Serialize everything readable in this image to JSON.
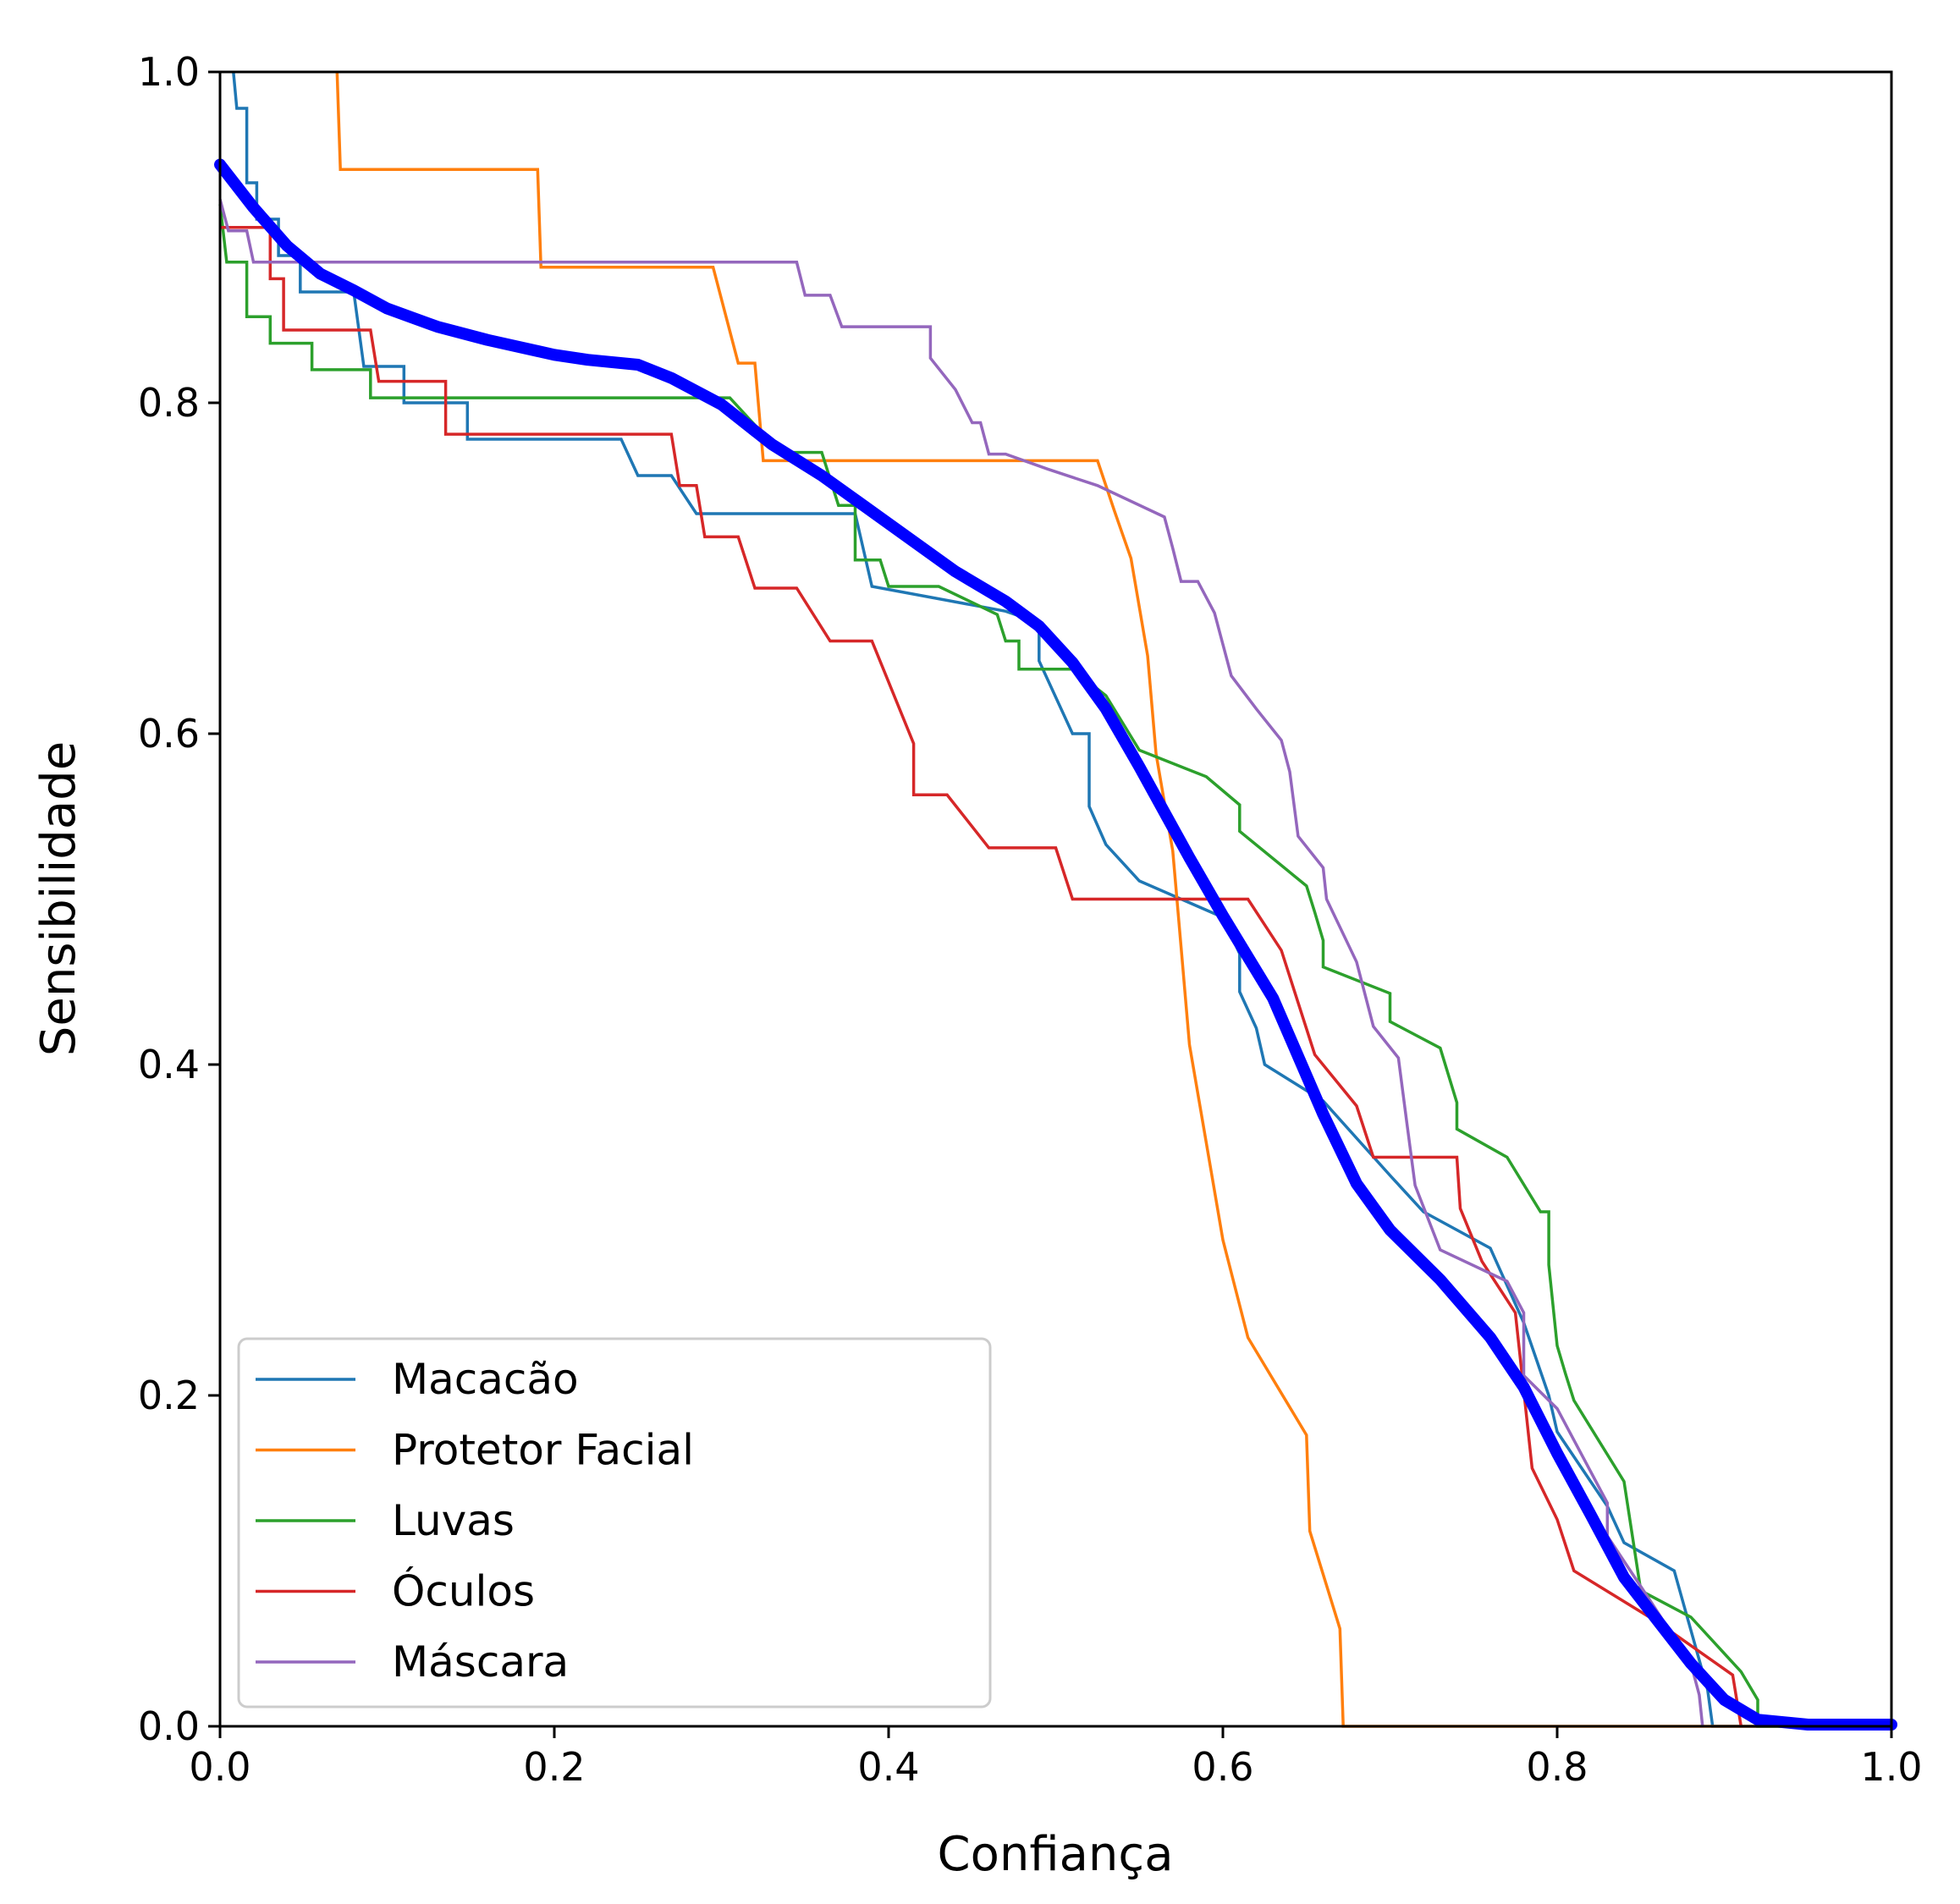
{
  "chart_data": {
    "type": "line",
    "xlabel": "Confiança",
    "ylabel": "Sensibilidade",
    "xlim": [
      0,
      1
    ],
    "ylim": [
      0,
      1
    ],
    "xticks": [
      "0.0",
      "0.2",
      "0.4",
      "0.6",
      "0.8",
      "1.0"
    ],
    "yticks": [
      "0.0",
      "0.2",
      "0.4",
      "0.6",
      "0.8",
      "1.0"
    ],
    "grid": false,
    "legend_position": "bottom-left",
    "series": [
      {
        "name": "Macacão",
        "color": "#1f77b4",
        "points": [
          [
            0.008,
            1.0
          ],
          [
            0.01,
            0.978
          ],
          [
            0.016,
            0.978
          ],
          [
            0.016,
            0.933
          ],
          [
            0.022,
            0.933
          ],
          [
            0.022,
            0.911
          ],
          [
            0.035,
            0.911
          ],
          [
            0.035,
            0.889
          ],
          [
            0.048,
            0.889
          ],
          [
            0.048,
            0.867
          ],
          [
            0.08,
            0.867
          ],
          [
            0.086,
            0.822
          ],
          [
            0.11,
            0.822
          ],
          [
            0.11,
            0.8
          ],
          [
            0.148,
            0.8
          ],
          [
            0.148,
            0.778
          ],
          [
            0.24,
            0.778
          ],
          [
            0.25,
            0.756
          ],
          [
            0.27,
            0.756
          ],
          [
            0.285,
            0.733
          ],
          [
            0.38,
            0.733
          ],
          [
            0.39,
            0.689
          ],
          [
            0.47,
            0.674
          ],
          [
            0.49,
            0.667
          ],
          [
            0.49,
            0.644
          ],
          [
            0.51,
            0.6
          ],
          [
            0.52,
            0.6
          ],
          [
            0.52,
            0.556
          ],
          [
            0.53,
            0.533
          ],
          [
            0.55,
            0.511
          ],
          [
            0.6,
            0.489
          ],
          [
            0.61,
            0.467
          ],
          [
            0.61,
            0.444
          ],
          [
            0.62,
            0.422
          ],
          [
            0.625,
            0.4
          ],
          [
            0.66,
            0.378
          ],
          [
            0.7,
            0.333
          ],
          [
            0.72,
            0.311
          ],
          [
            0.76,
            0.289
          ],
          [
            0.78,
            0.244
          ],
          [
            0.795,
            0.2
          ],
          [
            0.8,
            0.178
          ],
          [
            0.83,
            0.133
          ],
          [
            0.84,
            0.111
          ],
          [
            0.87,
            0.094
          ],
          [
            0.89,
            0.022
          ],
          [
            0.893,
            0.0
          ],
          [
            1.0,
            0.0
          ]
        ]
      },
      {
        "name": "Protetor Facial",
        "color": "#ff7f0e",
        "points": [
          [
            0.07,
            1.0
          ],
          [
            0.072,
            0.941
          ],
          [
            0.19,
            0.941
          ],
          [
            0.192,
            0.882
          ],
          [
            0.295,
            0.882
          ],
          [
            0.31,
            0.824
          ],
          [
            0.32,
            0.824
          ],
          [
            0.325,
            0.765
          ],
          [
            0.525,
            0.765
          ],
          [
            0.535,
            0.735
          ],
          [
            0.545,
            0.706
          ],
          [
            0.555,
            0.647
          ],
          [
            0.56,
            0.588
          ],
          [
            0.57,
            0.529
          ],
          [
            0.575,
            0.471
          ],
          [
            0.58,
            0.412
          ],
          [
            0.59,
            0.353
          ],
          [
            0.6,
            0.294
          ],
          [
            0.615,
            0.235
          ],
          [
            0.65,
            0.176
          ],
          [
            0.652,
            0.118
          ],
          [
            0.67,
            0.059
          ],
          [
            0.672,
            0.0
          ],
          [
            1.0,
            0.0
          ]
        ]
      },
      {
        "name": "Luvas",
        "color": "#2ca02c",
        "points": [
          [
            0.0,
            0.92
          ],
          [
            0.004,
            0.885
          ],
          [
            0.016,
            0.885
          ],
          [
            0.016,
            0.852
          ],
          [
            0.03,
            0.852
          ],
          [
            0.03,
            0.836
          ],
          [
            0.055,
            0.836
          ],
          [
            0.055,
            0.82
          ],
          [
            0.09,
            0.82
          ],
          [
            0.09,
            0.803
          ],
          [
            0.305,
            0.803
          ],
          [
            0.335,
            0.77
          ],
          [
            0.36,
            0.77
          ],
          [
            0.37,
            0.738
          ],
          [
            0.38,
            0.738
          ],
          [
            0.38,
            0.705
          ],
          [
            0.395,
            0.705
          ],
          [
            0.4,
            0.689
          ],
          [
            0.43,
            0.689
          ],
          [
            0.465,
            0.672
          ],
          [
            0.47,
            0.656
          ],
          [
            0.478,
            0.656
          ],
          [
            0.478,
            0.639
          ],
          [
            0.51,
            0.639
          ],
          [
            0.53,
            0.623
          ],
          [
            0.55,
            0.59
          ],
          [
            0.59,
            0.574
          ],
          [
            0.61,
            0.557
          ],
          [
            0.61,
            0.541
          ],
          [
            0.65,
            0.508
          ],
          [
            0.655,
            0.492
          ],
          [
            0.66,
            0.475
          ],
          [
            0.66,
            0.459
          ],
          [
            0.7,
            0.443
          ],
          [
            0.7,
            0.426
          ],
          [
            0.73,
            0.41
          ],
          [
            0.74,
            0.377
          ],
          [
            0.74,
            0.361
          ],
          [
            0.77,
            0.344
          ],
          [
            0.79,
            0.311
          ],
          [
            0.795,
            0.311
          ],
          [
            0.795,
            0.279
          ],
          [
            0.8,
            0.23
          ],
          [
            0.805,
            0.213
          ],
          [
            0.81,
            0.197
          ],
          [
            0.84,
            0.148
          ],
          [
            0.85,
            0.082
          ],
          [
            0.88,
            0.066
          ],
          [
            0.91,
            0.033
          ],
          [
            0.92,
            0.016
          ],
          [
            0.92,
            0.0
          ],
          [
            1.0,
            0.0
          ]
        ]
      },
      {
        "name": "Óculos",
        "color": "#d62728",
        "points": [
          [
            0.0,
            0.906
          ],
          [
            0.03,
            0.906
          ],
          [
            0.03,
            0.875
          ],
          [
            0.038,
            0.875
          ],
          [
            0.038,
            0.844
          ],
          [
            0.09,
            0.844
          ],
          [
            0.095,
            0.813
          ],
          [
            0.135,
            0.813
          ],
          [
            0.135,
            0.781
          ],
          [
            0.27,
            0.781
          ],
          [
            0.275,
            0.75
          ],
          [
            0.285,
            0.75
          ],
          [
            0.29,
            0.719
          ],
          [
            0.31,
            0.719
          ],
          [
            0.32,
            0.688
          ],
          [
            0.345,
            0.688
          ],
          [
            0.365,
            0.656
          ],
          [
            0.39,
            0.656
          ],
          [
            0.415,
            0.594
          ],
          [
            0.415,
            0.563
          ],
          [
            0.435,
            0.563
          ],
          [
            0.46,
            0.531
          ],
          [
            0.5,
            0.531
          ],
          [
            0.51,
            0.5
          ],
          [
            0.615,
            0.5
          ],
          [
            0.635,
            0.469
          ],
          [
            0.655,
            0.406
          ],
          [
            0.68,
            0.375
          ],
          [
            0.69,
            0.344
          ],
          [
            0.74,
            0.344
          ],
          [
            0.742,
            0.313
          ],
          [
            0.755,
            0.281
          ],
          [
            0.775,
            0.25
          ],
          [
            0.785,
            0.156
          ],
          [
            0.8,
            0.125
          ],
          [
            0.81,
            0.094
          ],
          [
            0.86,
            0.063
          ],
          [
            0.905,
            0.031
          ],
          [
            0.91,
            0.0
          ]
        ]
      },
      {
        "name": "Máscara",
        "color": "#9467bd",
        "points": [
          [
            0.0,
            0.923
          ],
          [
            0.005,
            0.904
          ],
          [
            0.016,
            0.904
          ],
          [
            0.02,
            0.885
          ],
          [
            0.345,
            0.885
          ],
          [
            0.35,
            0.865
          ],
          [
            0.365,
            0.865
          ],
          [
            0.372,
            0.846
          ],
          [
            0.425,
            0.846
          ],
          [
            0.425,
            0.827
          ],
          [
            0.44,
            0.808
          ],
          [
            0.45,
            0.788
          ],
          [
            0.455,
            0.788
          ],
          [
            0.46,
            0.769
          ],
          [
            0.47,
            0.769
          ],
          [
            0.495,
            0.76
          ],
          [
            0.525,
            0.75
          ],
          [
            0.565,
            0.731
          ],
          [
            0.57,
            0.712
          ],
          [
            0.575,
            0.692
          ],
          [
            0.585,
            0.692
          ],
          [
            0.595,
            0.673
          ],
          [
            0.6,
            0.654
          ],
          [
            0.605,
            0.635
          ],
          [
            0.62,
            0.615
          ],
          [
            0.635,
            0.596
          ],
          [
            0.64,
            0.577
          ],
          [
            0.645,
            0.538
          ],
          [
            0.66,
            0.519
          ],
          [
            0.662,
            0.5
          ],
          [
            0.68,
            0.462
          ],
          [
            0.69,
            0.423
          ],
          [
            0.705,
            0.404
          ],
          [
            0.71,
            0.365
          ],
          [
            0.715,
            0.327
          ],
          [
            0.73,
            0.288
          ],
          [
            0.77,
            0.269
          ],
          [
            0.78,
            0.25
          ],
          [
            0.78,
            0.212
          ],
          [
            0.8,
            0.192
          ],
          [
            0.81,
            0.173
          ],
          [
            0.83,
            0.135
          ],
          [
            0.83,
            0.115
          ],
          [
            0.855,
            0.077
          ],
          [
            0.88,
            0.038
          ],
          [
            0.885,
            0.019
          ],
          [
            0.887,
            0.0
          ]
        ]
      }
    ],
    "average_curve": {
      "color": "#0000ff",
      "points": [
        [
          0.0,
          0.944
        ],
        [
          0.02,
          0.918
        ],
        [
          0.04,
          0.895
        ],
        [
          0.06,
          0.878
        ],
        [
          0.08,
          0.868
        ],
        [
          0.1,
          0.857
        ],
        [
          0.13,
          0.846
        ],
        [
          0.16,
          0.838
        ],
        [
          0.2,
          0.829
        ],
        [
          0.22,
          0.826
        ],
        [
          0.25,
          0.823
        ],
        [
          0.27,
          0.815
        ],
        [
          0.3,
          0.799
        ],
        [
          0.33,
          0.775
        ],
        [
          0.36,
          0.756
        ],
        [
          0.4,
          0.727
        ],
        [
          0.44,
          0.698
        ],
        [
          0.47,
          0.68
        ],
        [
          0.49,
          0.665
        ],
        [
          0.51,
          0.643
        ],
        [
          0.53,
          0.615
        ],
        [
          0.55,
          0.58
        ],
        [
          0.58,
          0.525
        ],
        [
          0.6,
          0.49
        ],
        [
          0.63,
          0.44
        ],
        [
          0.66,
          0.37
        ],
        [
          0.68,
          0.328
        ],
        [
          0.7,
          0.3
        ],
        [
          0.73,
          0.27
        ],
        [
          0.76,
          0.235
        ],
        [
          0.78,
          0.205
        ],
        [
          0.8,
          0.165
        ],
        [
          0.82,
          0.128
        ],
        [
          0.84,
          0.09
        ],
        [
          0.86,
          0.064
        ],
        [
          0.88,
          0.038
        ],
        [
          0.9,
          0.016
        ],
        [
          0.92,
          0.004
        ],
        [
          0.95,
          0.001
        ],
        [
          1.0,
          0.001
        ]
      ]
    }
  }
}
